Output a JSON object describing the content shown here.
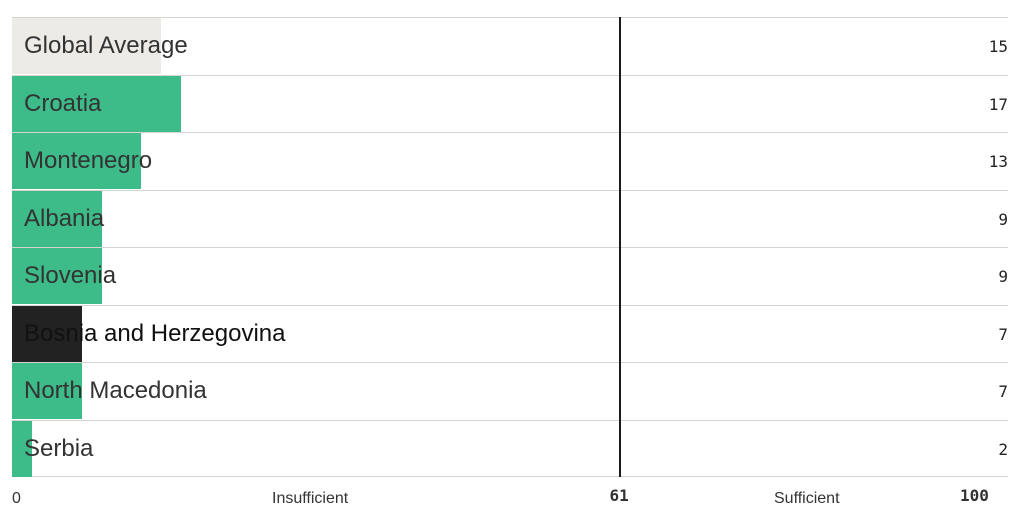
{
  "chart_data": {
    "type": "bar",
    "orientation": "horizontal",
    "categories": [
      "Global Average",
      "Croatia",
      "Montenegro",
      "Albania",
      "Slovenia",
      "Bosnia and Herzegovina",
      "North Macedonia",
      "Serbia"
    ],
    "values": [
      15,
      17,
      13,
      9,
      9,
      7,
      7,
      2
    ],
    "value_labels": [
      "15",
      "17",
      "13",
      "9",
      "9",
      "7",
      "7",
      "2"
    ],
    "bar_colors": [
      "#ecebe6",
      "#3dbb88",
      "#3dbb88",
      "#3dbb88",
      "#3dbb88",
      "#222222",
      "#3dbb88",
      "#3dbb88"
    ],
    "xlim": [
      0,
      100
    ],
    "threshold": 61,
    "axis_labels": {
      "min": "0",
      "threshold": "61",
      "max": "100",
      "below_threshold": "Insufficient",
      "above_threshold": "Sufficient"
    },
    "grid": false,
    "legend": "none"
  },
  "colors": {
    "text": "#333333",
    "text_on_dark": "#ffffff",
    "separator": "#d5d5cf",
    "threshold_line": "#1a1a1a"
  }
}
